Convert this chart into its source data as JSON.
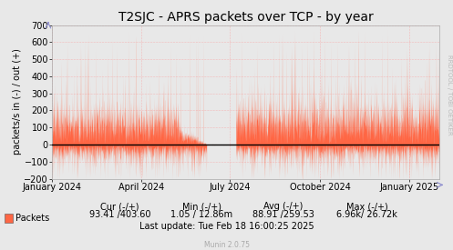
{
  "title": "T2SJC - APRS packets over TCP - by year",
  "ylabel": "packets/s in (-) / out (+)",
  "right_label": "RRDTOOL / TOBI OETIKER",
  "ylim": [
    -200,
    700
  ],
  "yticks": [
    -200,
    -100,
    0,
    100,
    200,
    300,
    400,
    500,
    600,
    700
  ],
  "xlim": [
    0,
    396
  ],
  "xtick_days": [
    0,
    91,
    182,
    274,
    365
  ],
  "xtick_labels": [
    "January 2024",
    "April 2024",
    "July 2024",
    "October 2024",
    "January 2025"
  ],
  "bg_color": "#e8e8e8",
  "plot_bg_color": "#e8e8e8",
  "grid_color": "#ff8888",
  "fill_color": "#ff6644",
  "zero_line_color": "#000000",
  "footer_color": "#aaaaaa",
  "legend_label": "Packets",
  "cur_label": "Cur (-/+)",
  "min_label": "Min (-/+)",
  "avg_label": "Avg (-/+)",
  "max_label": "Max (-/+)",
  "cur_val": "93.41 /403.60",
  "min_val": "1.05 / 12.86m",
  "avg_val": "88.91 /259.53",
  "max_val": "6.96k/ 26.72k",
  "last_update": "Last update: Tue Feb 18 16:00:25 2025",
  "munin_version": "Munin 2.0.75",
  "title_fontsize": 10,
  "axis_label_fontsize": 7,
  "tick_fontsize": 7,
  "footer_fontsize": 7,
  "stats_fontsize": 7
}
